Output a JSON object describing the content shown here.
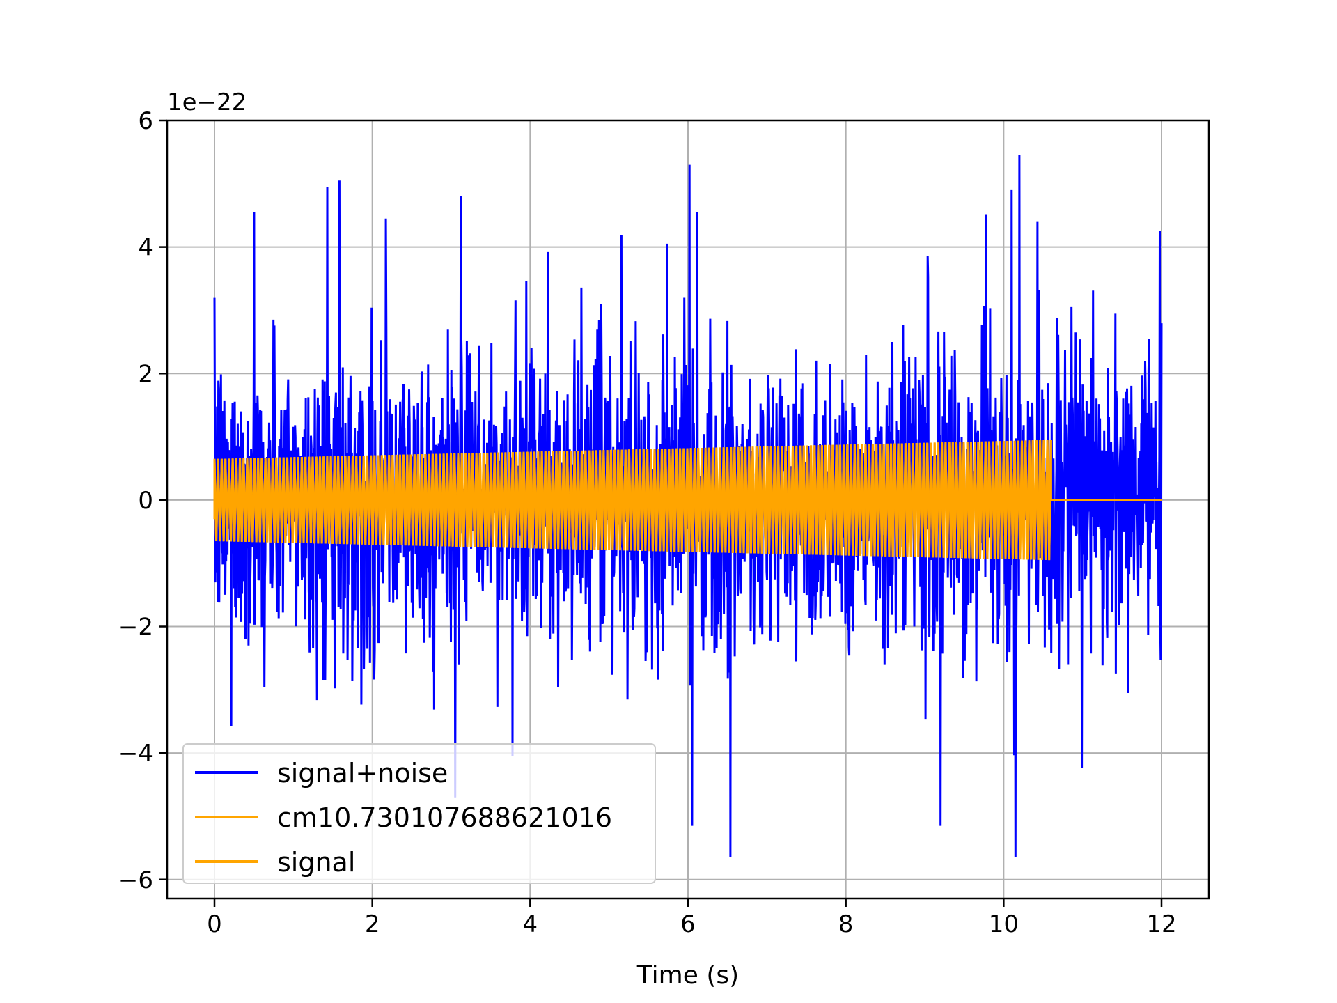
{
  "chart_data": {
    "type": "line",
    "title": "",
    "xlabel": "Time (s)",
    "ylabel": "",
    "y_offset_label": "1e−22",
    "y_scale_factor": 1e-22,
    "xlim": [
      -0.6,
      12.6
    ],
    "ylim": [
      -6.3,
      6.0
    ],
    "xticks": [
      0,
      2,
      4,
      6,
      8,
      10,
      12
    ],
    "xtick_labels": [
      "0",
      "2",
      "4",
      "6",
      "8",
      "10",
      "12"
    ],
    "yticks": [
      6,
      4,
      2,
      0,
      -2,
      -4,
      -6
    ],
    "ytick_labels": [
      "6",
      "4",
      "2",
      "0",
      "−2",
      "−4",
      "−6"
    ],
    "grid": true,
    "legend_position": "lower-left",
    "series": [
      {
        "name": "signal+noise",
        "color": "#0000ff",
        "style": "noisy-signal",
        "x_range": [
          0,
          12
        ],
        "typical_amplitude": 1.6,
        "peak_amplitude": 5.5,
        "peaks": [
          {
            "x": 0.5,
            "y": 4.55
          },
          {
            "x": 1.43,
            "y": 4.95
          },
          {
            "x": 1.58,
            "y": 5.05
          },
          {
            "x": 2.17,
            "y": 4.45
          },
          {
            "x": 3.12,
            "y": 4.8
          },
          {
            "x": 6.02,
            "y": 5.3
          },
          {
            "x": 6.12,
            "y": 4.55
          },
          {
            "x": 10.1,
            "y": 4.9
          },
          {
            "x": 10.2,
            "y": 5.45
          },
          {
            "x": 11.98,
            "y": 4.25
          },
          {
            "x": 6.54,
            "y": -5.65
          },
          {
            "x": 6.05,
            "y": -5.15
          },
          {
            "x": 9.2,
            "y": -5.15
          },
          {
            "x": 10.15,
            "y": -5.65
          },
          {
            "x": 3.05,
            "y": -4.7
          }
        ]
      },
      {
        "name": "cm10.730107688621016",
        "color": "#ffa500",
        "style": "chirp-envelope",
        "x_range": [
          0,
          10.6
        ],
        "amplitude_start": 0.65,
        "amplitude_end": 0.95,
        "after_end_value": 0.0,
        "after_end_x_range": [
          10.6,
          12
        ]
      },
      {
        "name": "signal",
        "color": "#ffa500",
        "style": "chirp-envelope",
        "x_range": [
          0,
          10.6
        ],
        "amplitude_start": 0.65,
        "amplitude_end": 0.95,
        "after_end_value": 0.0,
        "after_end_x_range": [
          10.6,
          12
        ]
      }
    ]
  }
}
